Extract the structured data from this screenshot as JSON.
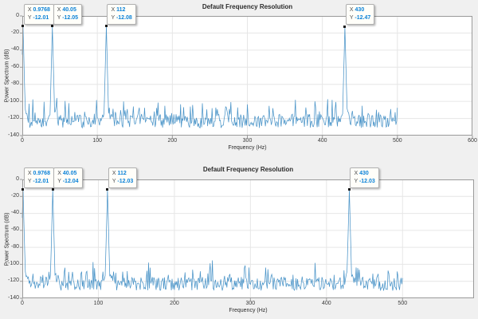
{
  "window": {
    "background": "#f0f0f0"
  },
  "colors": {
    "window_bg": "#f0f0f0",
    "axes_bg": "#ffffff",
    "line": "#4a94c8",
    "grid": "#e6e6e6",
    "axis_border": "#9a9a9a",
    "tick_text": "#3c3c3c",
    "title_text": "#2b2b2b",
    "datatip_bg": "#fffef9",
    "datatip_border": "#b0b0b0",
    "datatip_value": "#0b82d8",
    "datatip_label": "#4a4a4a",
    "marker": "#1a1a1a"
  },
  "chart_data": [
    {
      "type": "line",
      "title": "Default Frequency Resolution",
      "xlabel": "Frequency (Hz)",
      "ylabel": "Power Spectrum (dB)",
      "xlim": [
        0,
        600
      ],
      "ylim": [
        -140,
        0
      ],
      "xticks": [
        0,
        100,
        200,
        300,
        400,
        500,
        600
      ],
      "yticks": [
        0,
        -20,
        -40,
        -60,
        -80,
        -100,
        -120,
        -140
      ],
      "grid": true,
      "legend": null,
      "signal_range_hz": [
        0,
        500
      ],
      "sample_spacing_hz": 1,
      "noise_floor_db": {
        "mean": -121,
        "min": -134,
        "max": -96
      },
      "peaks": [
        {
          "x": 0.9768,
          "y": -12.01
        },
        {
          "x": 40.05,
          "y": -12.05
        },
        {
          "x": 112,
          "y": -12.08
        },
        {
          "x": 430,
          "y": -12.47
        }
      ],
      "datatips": [
        {
          "x_label": "X",
          "x_value": "0.9768",
          "y_label": "Y",
          "y_value": "-12.01",
          "x": 0.9768,
          "y": -12.01
        },
        {
          "x_label": "X",
          "x_value": "40.05",
          "y_label": "Y",
          "y_value": "-12.05",
          "x": 40.05,
          "y": -12.05
        },
        {
          "x_label": "X",
          "x_value": "112",
          "y_label": "Y",
          "y_value": "-12.08",
          "x": 112,
          "y": -12.08
        },
        {
          "x_label": "X",
          "x_value": "430",
          "y_label": "Y",
          "y_value": "-12.47",
          "x": 430,
          "y": -12.47
        }
      ],
      "seed": 11
    },
    {
      "type": "line",
      "title": "Default Frequency Resolution",
      "xlabel": "Frequency (Hz)",
      "ylabel": "Power Spectrum (dB)",
      "xlim": [
        0,
        594
      ],
      "ylim": [
        -140,
        0
      ],
      "xticks": [
        0,
        100,
        200,
        300,
        400,
        500
      ],
      "yticks": [
        0,
        -20,
        -40,
        -60,
        -80,
        -100,
        -120,
        -140
      ],
      "grid": true,
      "legend": null,
      "signal_range_hz": [
        0,
        500
      ],
      "sample_spacing_hz": 1,
      "noise_floor_db": {
        "mean": -121,
        "min": -134,
        "max": -96
      },
      "peaks": [
        {
          "x": 0.9768,
          "y": -12.01
        },
        {
          "x": 40.05,
          "y": -12.04
        },
        {
          "x": 112,
          "y": -12.03
        },
        {
          "x": 430,
          "y": -12.03
        }
      ],
      "datatips": [
        {
          "x_label": "X",
          "x_value": "0.9768",
          "y_label": "Y",
          "y_value": "-12.01",
          "x": 0.9768,
          "y": -12.01
        },
        {
          "x_label": "X",
          "x_value": "40.05",
          "y_label": "Y",
          "y_value": "-12.04",
          "x": 40.05,
          "y": -12.04
        },
        {
          "x_label": "X",
          "x_value": "112",
          "y_label": "Y",
          "y_value": "-12.03",
          "x": 112,
          "y": -12.03
        },
        {
          "x_label": "X",
          "x_value": "430",
          "y_label": "Y",
          "y_value": "-12.03",
          "x": 430,
          "y": -12.03
        }
      ],
      "seed": 77
    }
  ]
}
